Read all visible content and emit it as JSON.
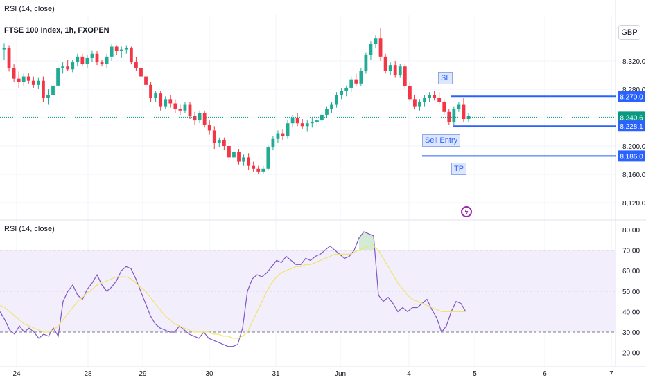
{
  "header": {
    "indicator_top": "RSI (14, close)",
    "symbol_title": "FTSE 100 Index, 1h, FXOPEN",
    "currency": "GBP",
    "rsi_title": "RSI (14, close)"
  },
  "icons": {
    "event": "lightning-icon"
  },
  "colors": {
    "up": "#22ab94",
    "down": "#f23645",
    "blue": "#2962ff",
    "rsi": "#7e57c2",
    "rsi_ma": "#f0e46a",
    "band": "#f3eefb",
    "last": "#089981",
    "grid": "#f0f3fa",
    "axis_text": "#131722"
  },
  "chart_data": [
    {
      "type": "candlestick",
      "title": "FTSE 100 Index, 1h, FXOPEN",
      "x_ticks": [
        "24",
        "28",
        "29",
        "30",
        "31",
        "Jun",
        "4",
        "5",
        "6",
        "7"
      ],
      "y_ticks": [
        "8,320.0",
        "8,280.0",
        "8,200.0",
        "8,160.0",
        "8,120.0"
      ],
      "ylim": [
        8102,
        8362
      ],
      "price_tags": [
        {
          "label": "8,270.0",
          "value": 8270.0,
          "kind": "level"
        },
        {
          "label": "8,240.6",
          "value": 8240.6,
          "kind": "last"
        },
        {
          "label": "8,228.1",
          "value": 8228.1,
          "kind": "level"
        },
        {
          "label": "8,186.0",
          "value": 8186.0,
          "kind": "level"
        }
      ],
      "levels": [
        {
          "name": "SL",
          "value": 8270.0
        },
        {
          "name": "Sell Entry",
          "value": 8228.1
        },
        {
          "name": "TP",
          "value": 8186.0
        }
      ],
      "annotations": [
        "SL",
        "Sell Entry",
        "TP"
      ],
      "candles_ohlc": [
        [
          8336,
          8345,
          8322,
          8338
        ],
        [
          8338,
          8342,
          8305,
          8310
        ],
        [
          8310,
          8315,
          8290,
          8295
        ],
        [
          8295,
          8305,
          8282,
          8290
        ],
        [
          8290,
          8302,
          8285,
          8298
        ],
        [
          8298,
          8303,
          8288,
          8292
        ],
        [
          8292,
          8298,
          8282,
          8286
        ],
        [
          8286,
          8296,
          8280,
          8292
        ],
        [
          8292,
          8298,
          8262,
          8268
        ],
        [
          8268,
          8280,
          8258,
          8272
        ],
        [
          8272,
          8290,
          8266,
          8285
        ],
        [
          8285,
          8315,
          8280,
          8310
        ],
        [
          8310,
          8318,
          8302,
          8312
        ],
        [
          8312,
          8322,
          8306,
          8308
        ],
        [
          8308,
          8322,
          8304,
          8318
        ],
        [
          8318,
          8330,
          8312,
          8326
        ],
        [
          8326,
          8330,
          8312,
          8316
        ],
        [
          8316,
          8328,
          8310,
          8324
        ],
        [
          8324,
          8335,
          8318,
          8330
        ],
        [
          8330,
          8334,
          8314,
          8318
        ],
        [
          8318,
          8322,
          8312,
          8316
        ],
        [
          8316,
          8330,
          8310,
          8326
        ],
        [
          8326,
          8344,
          8320,
          8340
        ],
        [
          8340,
          8342,
          8328,
          8334
        ],
        [
          8334,
          8340,
          8324,
          8336
        ],
        [
          8336,
          8342,
          8330,
          8338
        ],
        [
          8338,
          8340,
          8315,
          8318
        ],
        [
          8318,
          8325,
          8306,
          8310
        ],
        [
          8310,
          8314,
          8292,
          8298
        ],
        [
          8298,
          8304,
          8282,
          8286
        ],
        [
          8286,
          8290,
          8262,
          8268
        ],
        [
          8268,
          8278,
          8262,
          8274
        ],
        [
          8274,
          8278,
          8250,
          8256
        ],
        [
          8256,
          8270,
          8252,
          8266
        ],
        [
          8266,
          8272,
          8254,
          8260
        ],
        [
          8260,
          8266,
          8246,
          8252
        ],
        [
          8252,
          8258,
          8244,
          8250
        ],
        [
          8250,
          8262,
          8246,
          8258
        ],
        [
          8258,
          8262,
          8238,
          8242
        ],
        [
          8242,
          8248,
          8230,
          8236
        ],
        [
          8236,
          8250,
          8232,
          8246
        ],
        [
          8246,
          8250,
          8226,
          8230
        ],
        [
          8230,
          8236,
          8216,
          8222
        ],
        [
          8222,
          8228,
          8196,
          8204
        ],
        [
          8204,
          8212,
          8198,
          8208
        ],
        [
          8208,
          8212,
          8194,
          8200
        ],
        [
          8200,
          8204,
          8180,
          8184
        ],
        [
          8184,
          8198,
          8176,
          8192
        ],
        [
          8192,
          8196,
          8174,
          8178
        ],
        [
          8178,
          8188,
          8172,
          8184
        ],
        [
          8184,
          8190,
          8166,
          8172
        ],
        [
          8172,
          8178,
          8164,
          8168
        ],
        [
          8168,
          8172,
          8160,
          8164
        ],
        [
          8164,
          8172,
          8160,
          8168
        ],
        [
          8168,
          8202,
          8166,
          8198
        ],
        [
          8198,
          8214,
          8194,
          8210
        ],
        [
          8210,
          8222,
          8204,
          8218
        ],
        [
          8218,
          8224,
          8208,
          8214
        ],
        [
          8214,
          8236,
          8210,
          8232
        ],
        [
          8232,
          8244,
          8226,
          8240
        ],
        [
          8240,
          8246,
          8228,
          8232
        ],
        [
          8232,
          8238,
          8224,
          8228
        ],
        [
          8228,
          8236,
          8220,
          8232
        ],
        [
          8232,
          8240,
          8226,
          8234
        ],
        [
          8234,
          8240,
          8228,
          8236
        ],
        [
          8236,
          8248,
          8232,
          8244
        ],
        [
          8244,
          8256,
          8240,
          8252
        ],
        [
          8252,
          8262,
          8246,
          8258
        ],
        [
          8258,
          8276,
          8254,
          8272
        ],
        [
          8272,
          8282,
          8266,
          8278
        ],
        [
          8278,
          8285,
          8270,
          8282
        ],
        [
          8282,
          8298,
          8276,
          8294
        ],
        [
          8294,
          8302,
          8284,
          8288
        ],
        [
          8288,
          8310,
          8284,
          8306
        ],
        [
          8306,
          8332,
          8302,
          8328
        ],
        [
          8328,
          8348,
          8322,
          8344
        ],
        [
          8344,
          8356,
          8338,
          8352
        ],
        [
          8352,
          8366,
          8320,
          8326
        ],
        [
          8326,
          8330,
          8302,
          8306
        ],
        [
          8306,
          8318,
          8300,
          8314
        ],
        [
          8314,
          8320,
          8296,
          8300
        ],
        [
          8300,
          8316,
          8296,
          8312
        ],
        [
          8312,
          8316,
          8280,
          8284
        ],
        [
          8284,
          8290,
          8262,
          8266
        ],
        [
          8266,
          8272,
          8252,
          8256
        ],
        [
          8256,
          8266,
          8250,
          8262
        ],
        [
          8262,
          8272,
          8256,
          8268
        ],
        [
          8268,
          8276,
          8262,
          8272
        ],
        [
          8272,
          8278,
          8264,
          8268
        ],
        [
          8268,
          8276,
          8258,
          8262
        ],
        [
          8262,
          8266,
          8244,
          8248
        ],
        [
          8248,
          8252,
          8230,
          8234
        ],
        [
          8234,
          8256,
          8230,
          8252
        ],
        [
          8252,
          8262,
          8248,
          8258
        ],
        [
          8258,
          8268,
          8234,
          8238
        ],
        [
          8238,
          8246,
          8234,
          8242
        ]
      ]
    },
    {
      "type": "line",
      "title": "RSI (14, close)",
      "y_ticks": [
        "80.00",
        "70.00",
        "60.00",
        "50.00",
        "40.00",
        "30.00",
        "20.00"
      ],
      "ylim": [
        15,
        83
      ],
      "band": [
        30,
        70
      ],
      "midline": 50,
      "series": [
        {
          "values": [
            40,
            36,
            31,
            29,
            33,
            30,
            32,
            30,
            27,
            29,
            28,
            32,
            28,
            45,
            50,
            53,
            48,
            46,
            51,
            54,
            58,
            53,
            50,
            52,
            55,
            60,
            62,
            61,
            56,
            50,
            44,
            38,
            34,
            32,
            31,
            30,
            30,
            33,
            31,
            29,
            28,
            27,
            30,
            27,
            26,
            25,
            24,
            23,
            23,
            24,
            32,
            50,
            56,
            58,
            57,
            59,
            62,
            65,
            64,
            67,
            65,
            63,
            63,
            66,
            65,
            67,
            68,
            70,
            72,
            70,
            68,
            66,
            67,
            70,
            76,
            79,
            78,
            77,
            48,
            45,
            47,
            44,
            40,
            42,
            40,
            42,
            42,
            44,
            46,
            41,
            37,
            30,
            33,
            40,
            45,
            44,
            40
          ],
          "color_key": "rsi"
        },
        {
          "values": [
            43,
            42,
            40,
            38,
            36,
            34,
            33,
            32,
            31,
            30,
            30,
            31,
            33,
            36,
            39,
            42,
            45,
            47,
            49,
            51,
            53,
            54,
            55,
            56,
            57,
            57,
            57,
            56,
            54,
            52,
            50,
            47,
            44,
            41,
            38,
            36,
            34,
            33,
            32,
            31,
            30,
            30,
            30,
            30,
            29,
            29,
            28,
            28,
            27,
            27,
            28,
            30,
            35,
            40,
            45,
            50,
            54,
            57,
            59,
            60,
            61,
            62,
            62,
            63,
            63,
            64,
            65,
            66,
            67,
            68,
            68,
            68,
            68,
            69,
            70,
            71,
            72,
            72,
            70,
            66,
            62,
            58,
            54,
            51,
            48,
            46,
            45,
            44,
            43,
            42,
            41,
            40,
            40,
            40,
            40,
            40,
            40
          ],
          "color_key": "rsi_ma"
        }
      ]
    }
  ]
}
